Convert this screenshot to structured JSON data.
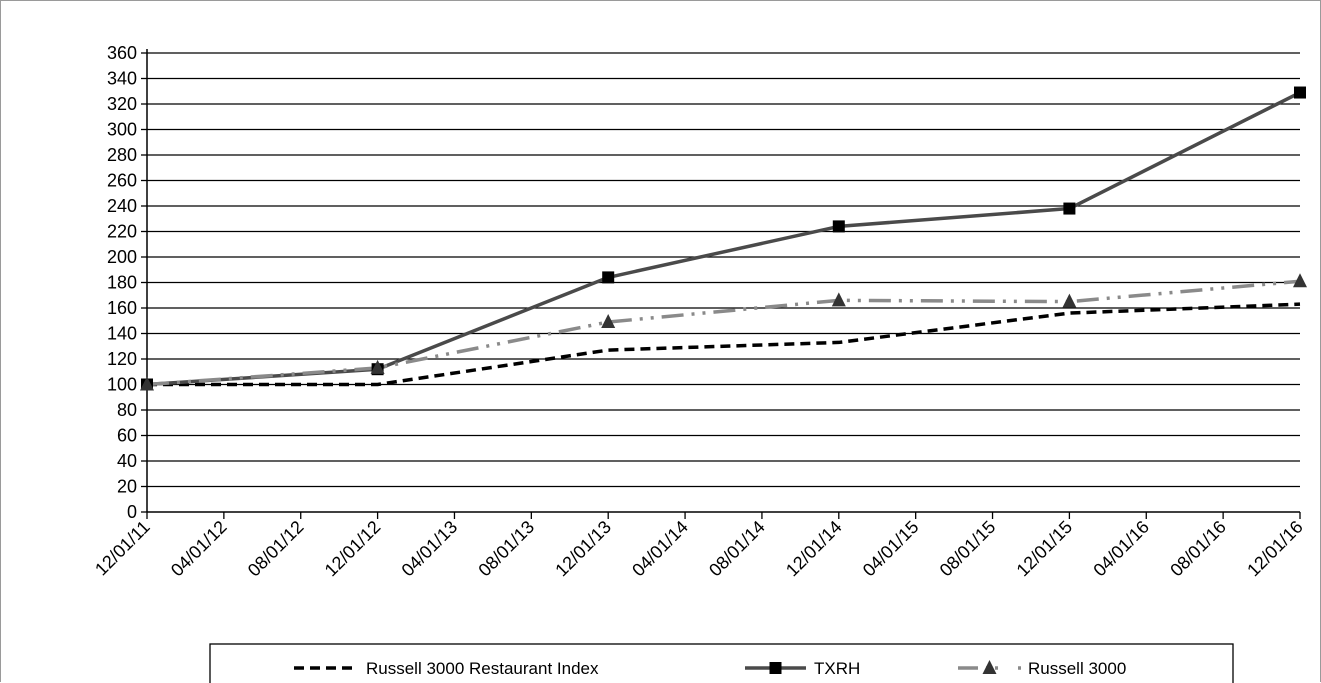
{
  "chart_data": {
    "type": "line",
    "categories": [
      "12/01/11",
      "04/01/12",
      "08/01/12",
      "12/01/12",
      "04/01/13",
      "08/01/13",
      "12/01/13",
      "04/01/14",
      "08/01/14",
      "12/01/14",
      "04/01/15",
      "08/01/15",
      "12/01/15",
      "04/01/16",
      "08/01/16",
      "12/01/16"
    ],
    "ylim": [
      0,
      360
    ],
    "yticks": [
      0,
      20,
      40,
      60,
      80,
      100,
      120,
      140,
      160,
      180,
      200,
      220,
      240,
      260,
      280,
      300,
      320,
      340,
      360
    ],
    "grid": true,
    "legend_position": "bottom",
    "series": [
      {
        "name": "Russell 3000 Restaurant Index",
        "x": [
          "12/01/11",
          "12/01/12",
          "12/01/13",
          "12/01/14",
          "12/01/15",
          "12/01/16"
        ],
        "values": [
          100,
          100,
          127,
          133,
          156,
          163
        ],
        "color": "#000000",
        "style": "dashed",
        "marker": "none"
      },
      {
        "name": "TXRH",
        "x": [
          "12/01/11",
          "12/01/12",
          "12/01/13",
          "12/01/14",
          "12/01/15",
          "12/01/16"
        ],
        "values": [
          100,
          112,
          184,
          224,
          238,
          329
        ],
        "color": "#4a4a4a",
        "style": "solid",
        "marker": "square"
      },
      {
        "name": "Russell 3000",
        "x": [
          "12/01/11",
          "12/01/12",
          "12/01/13",
          "12/01/14",
          "12/01/15",
          "12/01/16"
        ],
        "values": [
          100,
          113,
          149,
          166,
          165,
          181
        ],
        "color": "#8a8a8a",
        "style": "dash-dot",
        "marker": "triangle"
      }
    ]
  }
}
